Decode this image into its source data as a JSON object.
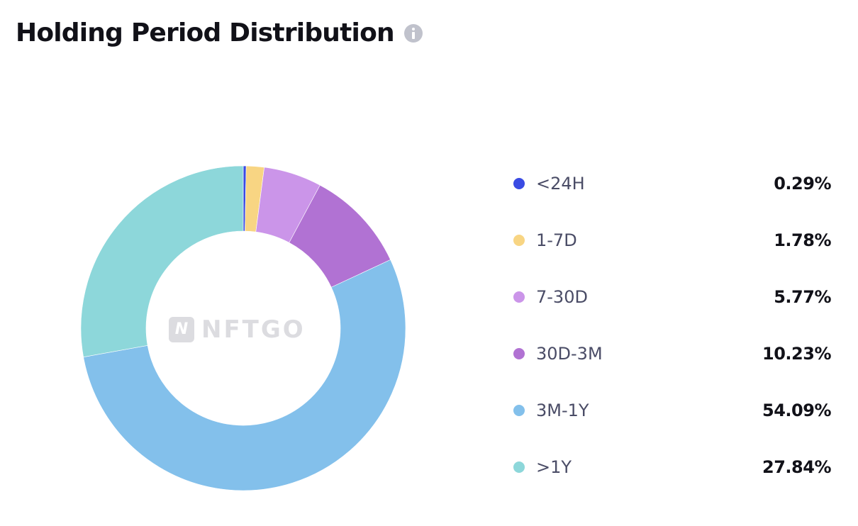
{
  "header": {
    "title": "Holding Period Distribution",
    "info_icon": "info-icon"
  },
  "watermark": {
    "text": "NFTGO",
    "logo_letter": "N"
  },
  "chart_data": {
    "type": "pie",
    "variant": "donut",
    "title": "Holding Period Distribution",
    "categories": [
      "<24H",
      "1-7D",
      "7-30D",
      "30D-3M",
      "3M-1Y",
      ">1Y"
    ],
    "values": [
      0.29,
      1.78,
      5.77,
      10.23,
      54.09,
      27.84
    ],
    "labels": [
      "0.29%",
      "1.78%",
      "5.77%",
      "10.23%",
      "54.09%",
      "27.84%"
    ],
    "colors": [
      "#3a4be3",
      "#f8d583",
      "#cb95e9",
      "#b172d3",
      "#83c0eb",
      "#8dd7da"
    ],
    "unit": "%",
    "legend_position": "right"
  }
}
